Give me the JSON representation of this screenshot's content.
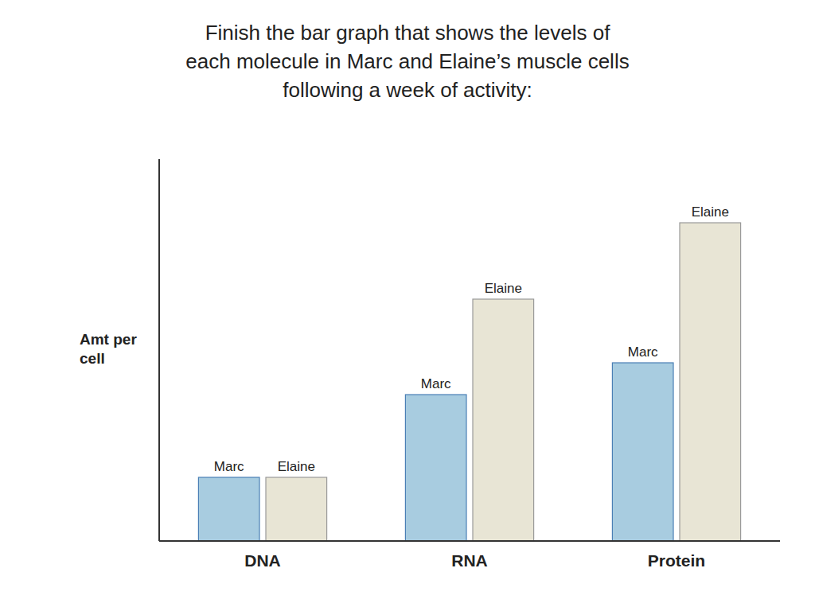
{
  "chart_data": {
    "type": "bar",
    "title": "Finish the bar graph that shows the levels of\neach molecule in Marc and Elaine’s muscle cells\nfollowing a week of activity:",
    "y_label": "Amt per\ncell",
    "categories": [
      "DNA",
      "RNA",
      "Protein"
    ],
    "series": [
      {
        "name": "Marc",
        "color": "#a8cce0",
        "values": [
          1.0,
          2.3,
          2.8
        ]
      },
      {
        "name": "Elaine",
        "color": "#e8e5d5",
        "values": [
          1.0,
          3.8,
          5.0
        ]
      }
    ],
    "ylim": [
      0,
      6.0
    ],
    "grid": false,
    "tick_labels": "x"
  }
}
